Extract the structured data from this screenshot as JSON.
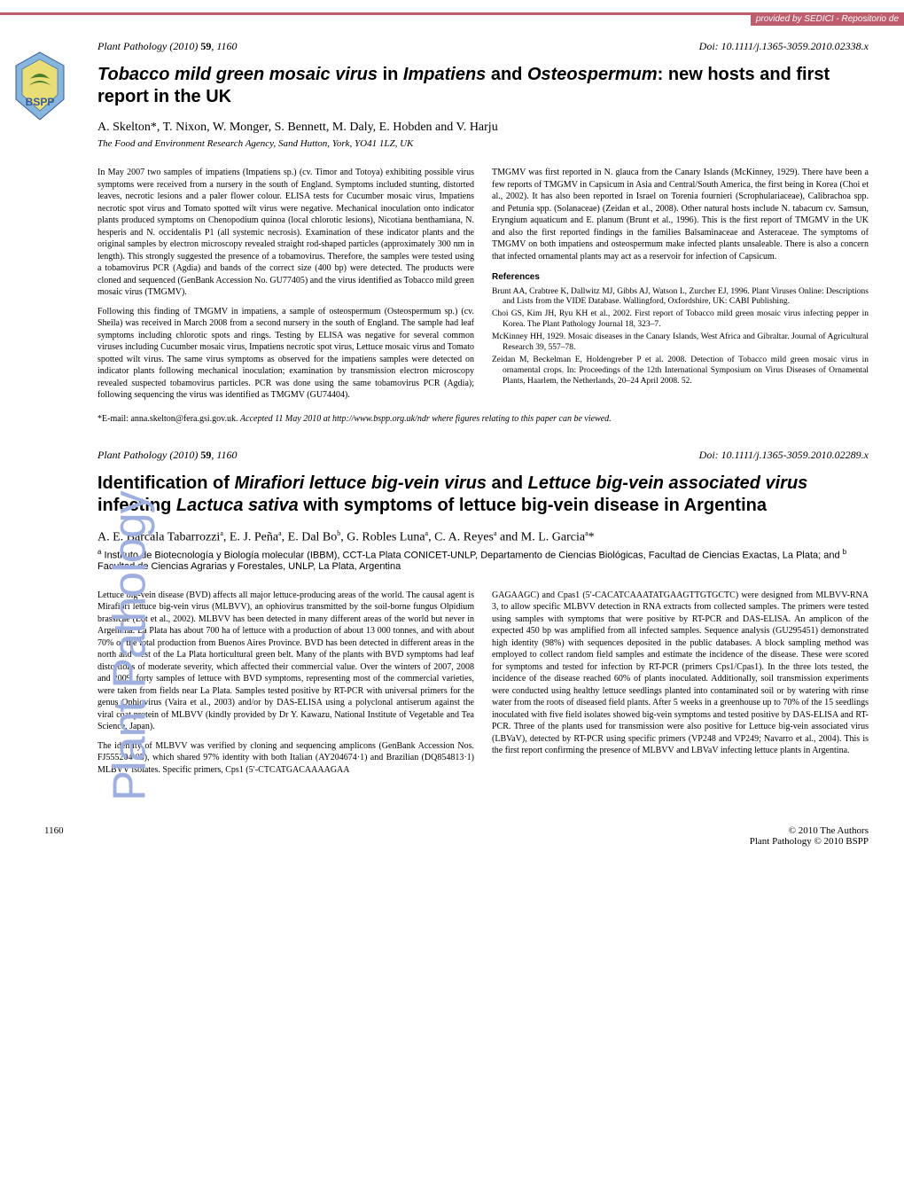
{
  "provenance": "provided by SEDICI - Repositorio de",
  "logo": {
    "label": "BSPP",
    "outer_fill": "#86b6dd",
    "inner_fill": "#f4e26a",
    "text_color": "#355b9a"
  },
  "side_label": "Plant Pathology",
  "side_label_color": "#9eafe0",
  "article1": {
    "journal": "Plant Pathology",
    "year": "(2010)",
    "volume": "59",
    "page": "1160",
    "doi": "Doi: 10.1111/j.1365-3059.2010.02338.x",
    "title_part1": "Tobacco mild green mosaic virus",
    "title_part2": " in ",
    "title_part3": "Impatiens",
    "title_part4": " and ",
    "title_part5": "Osteospermum",
    "title_part6": ": new hosts and first report in the UK",
    "authors": "A. Skelton*, T. Nixon, W. Monger, S. Bennett, M. Daly, E. Hobden and V. Harju",
    "affiliation": "The Food and Environment Research Agency, Sand Hutton, York, YO41 1LZ, UK",
    "col1_p1": "In May 2007 two samples of impatiens (Impatiens sp.) (cv. Timor and Totoya) exhibiting possible virus symptoms were received from a nursery in the south of England. Symptoms included stunting, distorted leaves, necrotic lesions and a paler flower colour. ELISA tests for Cucumber mosaic virus, Impatiens necrotic spot virus and Tomato spotted wilt virus were negative. Mechanical inoculation onto indicator plants produced symptoms on Chenopodium quinoa (local chlorotic lesions), Nicotiana benthamiana, N. hesperis and N. occidentalis P1 (all systemic necrosis). Examination of these indicator plants and the original samples by electron microscopy revealed straight rod-shaped particles (approximately 300 nm in length). This strongly suggested the presence of a tobamovirus. Therefore, the samples were tested using a tobamovirus PCR (Agdia) and bands of the correct size (400 bp) were detected. The products were cloned and sequenced (GenBank Accession No. GU77405) and the virus identified as Tobacco mild green mosaic virus (TMGMV).",
    "col1_p2": "Following this finding of TMGMV in impatiens, a sample of osteospermum (Osteospermum sp.) (cv. Sheila) was received in March 2008 from a second nursery in the south of England. The sample had leaf symptoms including chlorotic spots and rings. Testing by ELISA was negative for several common viruses including Cucumber mosaic virus, Impatiens necrotic spot virus, Lettuce mosaic virus and Tomato spotted wilt virus. The same virus symptoms as observed for the impatiens samples were detected on indicator plants following mechanical inoculation; examination by transmission electron microscopy revealed suspected tobamovirus particles. PCR was done using the same tobamovirus PCR (Agdia); following sequencing the virus was identified as TMGMV (GU74404).",
    "col2_p1": "TMGMV was first reported in N. glauca from the Canary Islands (McKinney, 1929). There have been a few reports of TMGMV in Capsicum in Asia and Central/South America, the first being in Korea (Choi et al., 2002). It has also been reported in Israel on Torenia fournieri (Scrophulariaceae), Calibrachoa spp. and Petunia spp. (Solanaceae) (Zeidan et al., 2008). Other natural hosts include N. tabacum cv. Samsun, Eryngium aquaticum and E. planum (Brunt et al., 1996). This is the first report of TMGMV in the UK and also the first reported findings in the families Balsaminaceae and Asteraceae. The symptoms of TMGMV on both impatiens and osteospermum make infected plants unsaleable. There is also a concern that infected ornamental plants may act as a reservoir for infection of Capsicum.",
    "ref_heading": "References",
    "refs": [
      "Brunt AA, Crabtree K, Dallwitz MJ, Gibbs AJ, Watson L, Zurcher EJ, 1996. Plant Viruses Online: Descriptions and Lists from the VIDE Database. Wallingford, Oxfordshire, UK: CABI Publishing.",
      "Choi GS, Kim JH, Ryu KH et al., 2002. First report of Tobacco mild green mosaic virus infecting pepper in Korea. The Plant Pathology Journal 18, 323–7.",
      "McKinney HH, 1929. Mosaic diseases in the Canary Islands, West Africa and Gibraltar. Journal of Agricultural Research 39, 557–78.",
      "Zeidan M, Beckelman E, Holdengreber P et al. 2008. Detection of Tobacco mild green mosaic virus in ornamental crops. In: Proceedings of the 12th International Symposium on Virus Diseases of Ornamental Plants, Haarlem, the Netherlands, 20–24 April 2008. 52."
    ],
    "footnote": "*E-mail: anna.skelton@fera.gsi.gov.uk. Accepted 11 May 2010 at http://www.bspp.org.uk/ndr where figures relating to this paper can be viewed."
  },
  "article2": {
    "journal": "Plant Pathology",
    "year": "(2010)",
    "volume": "59",
    "page": "1160",
    "doi": "Doi: 10.1111/j.1365-3059.2010.02289.x",
    "title_part1": "Identification of ",
    "title_part2": "Mirafiori lettuce big-vein virus",
    "title_part3": " and ",
    "title_part4": "Lettuce big-vein associated virus",
    "title_part5": " infecting ",
    "title_part6": "Lactuca sativa",
    "title_part7": " with symptoms of lettuce big-vein disease in Argentina",
    "authors_html": "A. E. Barcala Tabarrozzi<sup>a</sup>, E. J. Peña<sup>a</sup>, E. Dal Bo<sup>b</sup>, G. Robles Luna<sup>a</sup>, C. A. Reyes<sup>a</sup> and M. L. Garcia<sup>a</sup>*",
    "affiliation_html": "<sup>a</sup> Instituto de Biotecnología y Biología molecular (IBBM), CCT-La Plata CONICET-UNLP, Departamento de Ciencias Biológicas, Facultad de Ciencias Exactas, La Plata; and <sup>b</sup> Facultad de Ciencias Agrarias y Forestales, UNLP, La Plata, Argentina",
    "col1_p1": "Lettuce big-vein disease (BVD) affects all major lettuce-producing areas of the world. The causal agent is Mirafiori lettuce big-vein virus (MLBVV), an ophiovirus transmitted by the soil-borne fungus Olpidium brassicae (Lot et al., 2002). MLBVV has been detected in many different areas of the world but never in Argentina. La Plata has about 700 ha of lettuce with a production of about 13 000 tonnes, and with about 70% of the total production from Buenos Aires Province. BVD has been detected in different areas in the north and west of the La Plata horticultural green belt. Many of the plants with BVD symptoms had leaf distortions of moderate severity, which affected their commercial value. Over the winters of 2007, 2008 and 2009, forty samples of lettuce with BVD symptoms, representing most of the commercial varieties, were taken from fields near La Plata. Samples tested positive by RT-PCR with universal primers for the genus Ophiovirus (Vaira et al., 2003) and/or by DAS-ELISA using a polyclonal antiserum against the viral coat protein of MLBVV (kindly provided by Dr Y. Kawazu, National Institute of Vegetable and Tea Science, Japan).",
    "col1_p2": "The identity of MLBVV was verified by cloning and sequencing amplicons (GenBank Accession Nos. FJ555204-05), which shared 97% identity with both Italian (AY204674·1) and Brazilian (DQ854813·1) MLBVV isolates. Specific primers, Cps1 (5′-CTCATGACAAAAGAA",
    "col2_p1": "GAGAAGC) and Cpas1 (5′-CACATCAAATATGAAGTTGTGCTC) were designed from MLBVV-RNA 3, to allow specific MLBVV detection in RNA extracts from collected samples. The primers were tested using samples with symptoms that were positive by RT-PCR and DAS-ELISA. An amplicon of the expected 450 bp was amplified from all infected samples. Sequence analysis (GU295451) demonstrated high identity (98%) with sequences deposited in the public databases. A block sampling method was employed to collect random field samples and estimate the incidence of the disease. These were scored for symptoms and tested for infection by RT-PCR (primers Cps1/Cpas1). In the three lots tested, the incidence of the disease reached 60% of plants inoculated. Additionally, soil transmission experiments were conducted using healthy lettuce seedlings planted into contaminated soil or by watering with rinse water from the roots of diseased field plants. After 5 weeks in a greenhouse up to 70% of the 15 seedlings inoculated with five field isolates showed big-vein symptoms and tested positive by DAS-ELISA and RT-PCR. Three of the plants used for transmission were also positive for Lettuce big-vein associated virus (LBVaV), detected by RT-PCR using specific primers (VP248 and VP249; Navarro et al., 2004). This is the first report confirming the presence of MLBVV and LBVaV infecting lettuce plants in Argentina."
  },
  "footer": {
    "page_number": "1160",
    "copyright_line1": "© 2010 The Authors",
    "copyright_line2": "Plant Pathology © 2010 BSPP"
  },
  "colors": {
    "accent_bar": "#bd5d6e",
    "side_text": "#9eafe0",
    "text": "#000000",
    "background": "#ffffff"
  }
}
